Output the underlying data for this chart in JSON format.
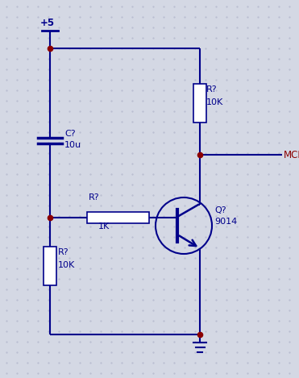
{
  "background_color": "#d4d8e4",
  "dot_color": "#b8bcd0",
  "wire_color": "#00008b",
  "component_color": "#00008b",
  "dot_junction_color": "#8b0000",
  "text_color": "#00008b",
  "mclr_text_color": "#8b0000",
  "vcc_label": "+5",
  "cap_label1": "C?",
  "cap_label2": "10u",
  "r1k_label1": "R?",
  "r1k_label2": "1K",
  "r10k_left_label1": "R?",
  "r10k_left_label2": "10K",
  "r10k_top_label1": "R?",
  "r10k_top_label2": "10K",
  "q_label1": "Q?",
  "q_label2": "9014",
  "mclr_label": "MCLR",
  "figsize": [
    3.71,
    4.69
  ],
  "dpi": 100
}
